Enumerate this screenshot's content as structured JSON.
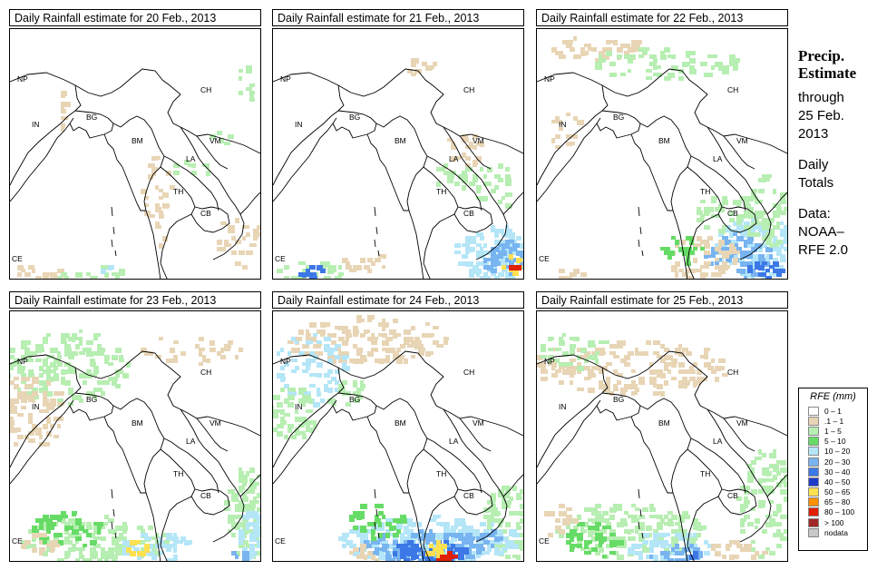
{
  "panels": [
    {
      "title": "Daily Rainfall estimate for  20 Feb., 2013"
    },
    {
      "title": "Daily Rainfall estimate for  21 Feb., 2013"
    },
    {
      "title": "Daily Rainfall estimate for  22 Feb., 2013"
    },
    {
      "title": "Daily Rainfall estimate for  23 Feb., 2013"
    },
    {
      "title": "Daily Rainfall estimate for  24 Feb., 2013"
    },
    {
      "title": "Daily Rainfall estimate for  25 Feb., 2013"
    }
  ],
  "country_labels": [
    "NP",
    "CH",
    "IN",
    "BG",
    "BM",
    "VM",
    "LA",
    "TH",
    "CB",
    "CE"
  ],
  "side": {
    "line1": "Precip.",
    "line2": "Estimate",
    "line3": "through",
    "line4": "25 Feb.",
    "line5": "2013",
    "line6": "Daily",
    "line7": "Totals",
    "line8": "Data:",
    "line9": "NOAA–",
    "line10": "RFE 2.0"
  },
  "legend": {
    "title": "RFE (mm)",
    "items": [
      {
        "label": "0 – 1",
        "color": "#ffffff"
      },
      {
        "label": ".1 – 1",
        "color": "#e8d5b5"
      },
      {
        "label": "1 – 5",
        "color": "#b7eeb2"
      },
      {
        "label": "5 – 10",
        "color": "#66dc66"
      },
      {
        "label": "10 – 20",
        "color": "#b4e6f8"
      },
      {
        "label": "20 – 30",
        "color": "#78b4f0"
      },
      {
        "label": "30 – 40",
        "color": "#3c78e6"
      },
      {
        "label": "40 – 50",
        "color": "#1e3cc8"
      },
      {
        "label": "50 – 65",
        "color": "#ffe050"
      },
      {
        "label": "65 – 80",
        "color": "#ff9000"
      },
      {
        "label": "80 – 100",
        "color": "#e02000"
      },
      {
        "label": "> 100",
        "color": "#a02828"
      },
      {
        "label": "nodata",
        "color": "#c8c8c8"
      }
    ]
  }
}
